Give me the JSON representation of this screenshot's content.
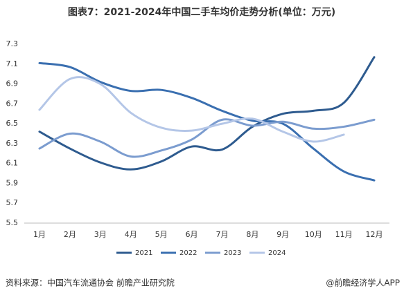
{
  "chart_data": {
    "type": "line",
    "title": "图表7：2021-2024年中国二手车均价走势分析(单位：万元)",
    "categories": [
      "1月",
      "2月",
      "3月",
      "4月",
      "5月",
      "6月",
      "7月",
      "8月",
      "9月",
      "10月",
      "11月",
      "12月"
    ],
    "series": [
      {
        "name": "2021",
        "color": "#2e5b8f",
        "values": [
          6.42,
          6.25,
          6.11,
          6.04,
          6.12,
          6.27,
          6.24,
          6.47,
          6.6,
          6.63,
          6.71,
          7.17
        ]
      },
      {
        "name": "2022",
        "color": "#3a6fb0",
        "values": [
          7.11,
          7.07,
          6.92,
          6.83,
          6.84,
          6.76,
          6.63,
          6.53,
          6.5,
          6.25,
          6.02,
          5.93
        ]
      },
      {
        "name": "2023",
        "color": "#7b9ccf",
        "values": [
          6.25,
          6.4,
          6.32,
          6.17,
          6.23,
          6.34,
          6.54,
          6.48,
          6.52,
          6.45,
          6.47,
          6.54
        ]
      },
      {
        "name": "2024",
        "color": "#b4c6e7",
        "values": [
          6.64,
          6.95,
          6.9,
          6.61,
          6.46,
          6.43,
          6.5,
          6.55,
          6.42,
          6.32,
          6.39,
          null
        ]
      }
    ],
    "ylim": [
      5.5,
      7.3
    ],
    "yticks": [
      5.5,
      5.7,
      5.9,
      6.1,
      6.3,
      6.5,
      6.7,
      6.9,
      7.1,
      7.3
    ],
    "grid": false,
    "legend": "bottom",
    "source": "资料来源：中国汽车流通协会 前瞻产业研究院",
    "credit": "@前瞻经济学人APP"
  }
}
